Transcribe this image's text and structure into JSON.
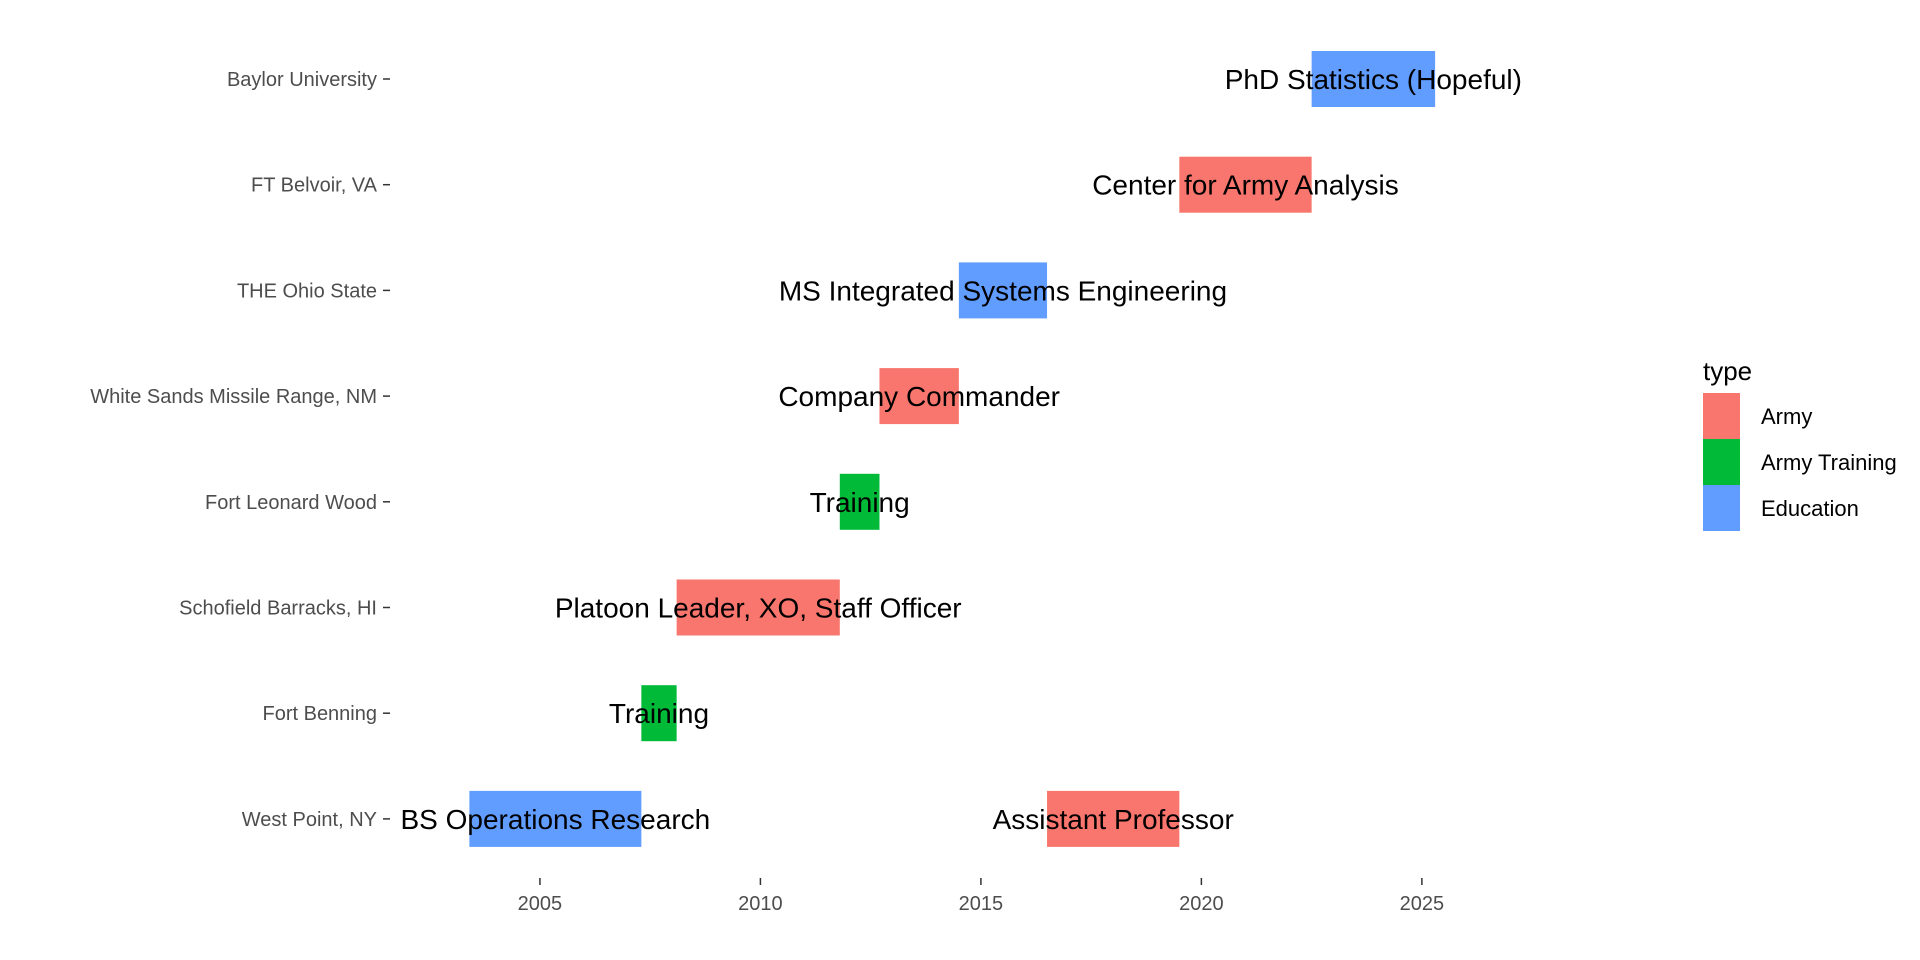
{
  "chart_data": {
    "type": "bar",
    "orientation": "horizontal",
    "xlabel": "",
    "ylabel": "",
    "xlim": [
      2001.6,
      2030.4
    ],
    "x_ticks": [
      "2005",
      "2010",
      "2015",
      "2020",
      "2025"
    ],
    "y_categories": [
      "West Point, NY",
      "Fort Benning",
      "Schofield Barracks, HI",
      "Fort Leonard Wood",
      "White Sands Missile Range, NM",
      "THE Ohio State",
      "FT Belvoir, VA",
      "Baylor University"
    ],
    "legend": {
      "title": "type",
      "position": "right",
      "entries": [
        {
          "name": "Army",
          "color": "#F8766D"
        },
        {
          "name": "Army Training",
          "color": "#00BA38"
        },
        {
          "name": "Education",
          "color": "#619CFF"
        }
      ]
    },
    "grid": false,
    "bars": [
      {
        "location": "West Point, NY",
        "start": 2003.4,
        "end": 2007.3,
        "label": "BS Operations Research",
        "type": "Education"
      },
      {
        "location": "Fort Benning",
        "start": 2007.3,
        "end": 2008.1,
        "label": "Training",
        "type": "Army Training"
      },
      {
        "location": "Schofield Barracks, HI",
        "start": 2008.1,
        "end": 2011.8,
        "label": "Platoon Leader, XO, Staff Officer",
        "type": "Army"
      },
      {
        "location": "Fort Leonard Wood",
        "start": 2011.8,
        "end": 2012.7,
        "label": "Training",
        "type": "Army Training"
      },
      {
        "location": "White Sands Missile Range, NM",
        "start": 2012.7,
        "end": 2014.5,
        "label": "Company Commander",
        "type": "Army"
      },
      {
        "location": "THE Ohio State",
        "start": 2014.5,
        "end": 2016.5,
        "label": "MS Integrated Systems Engineering",
        "type": "Education"
      },
      {
        "location": "West Point, NY",
        "start": 2016.5,
        "end": 2019.5,
        "label": "Assistant Professor",
        "type": "Army"
      },
      {
        "location": "FT Belvoir, VA",
        "start": 2019.5,
        "end": 2022.5,
        "label": "Center for Army Analysis",
        "type": "Army"
      },
      {
        "location": "Baylor University",
        "start": 2022.5,
        "end": 2025.3,
        "label": "PhD Statistics (Hopeful)",
        "type": "Education"
      }
    ]
  }
}
